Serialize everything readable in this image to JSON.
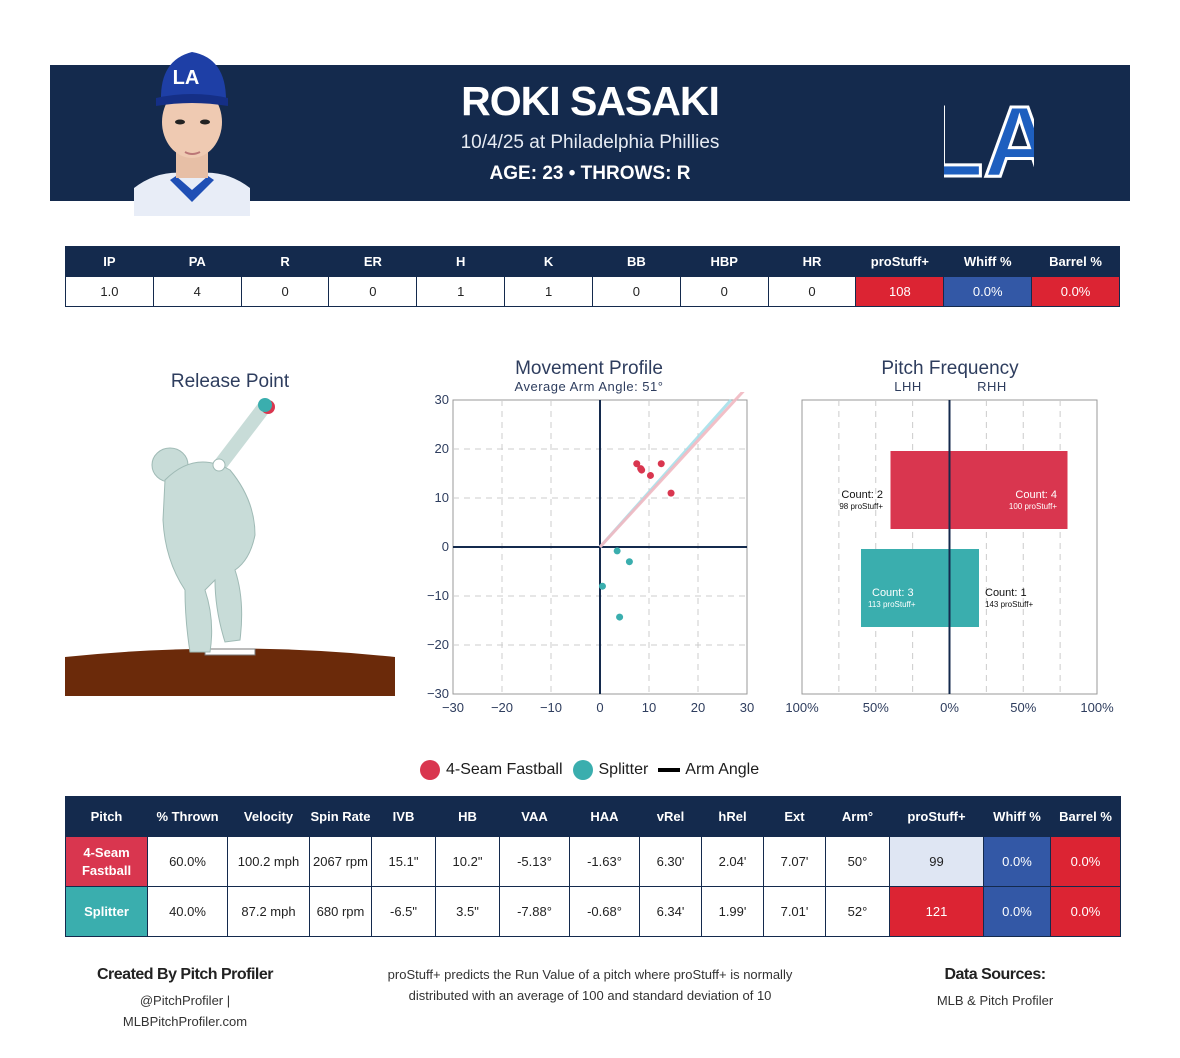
{
  "player": {
    "name": "ROKI SASAKI",
    "game": "10/4/25 at Philadelphia Phillies",
    "meta": "AGE: 23 • THROWS: R",
    "team_logo_text": "LA",
    "cap_logo_text": "LA"
  },
  "colors": {
    "navy": "#142a4d",
    "fastball": "#d9364f",
    "splitter": "#3aaeae",
    "red": "#dc2433",
    "blue": "#3358a6"
  },
  "stats": {
    "headers": [
      "IP",
      "PA",
      "R",
      "ER",
      "H",
      "K",
      "BB",
      "HBP",
      "HR",
      "proStuff+",
      "Whiff %",
      "Barrel %"
    ],
    "values": [
      "1.0",
      "4",
      "0",
      "0",
      "1",
      "1",
      "0",
      "0",
      "0",
      "108",
      "0.0%",
      "0.0%"
    ]
  },
  "release": {
    "title": "Release Point"
  },
  "movement": {
    "title": "Movement Profile",
    "subtitle": "Average Arm Angle: 51°",
    "xticks": [
      "−30",
      "−20",
      "−10",
      "0",
      "10",
      "20",
      "30"
    ],
    "yticks": [
      "30",
      "20",
      "10",
      "0",
      "−10",
      "−20",
      "−30"
    ]
  },
  "frequency": {
    "title": "Pitch Frequency",
    "lhh": "LHH",
    "rhh": "RHH",
    "xticks": [
      "100%",
      "50%",
      "0%",
      "50%",
      "100%"
    ],
    "fb_l_count": "Count: 2",
    "fb_l_ps": "98 proStuff+",
    "fb_r_count": "Count: 4",
    "fb_r_ps": "100 proStuff+",
    "sp_l_count": "Count: 3",
    "sp_l_ps": "113 proStuff+",
    "sp_r_count": "Count: 1",
    "sp_r_ps": "143 proStuff+"
  },
  "chart_data": [
    {
      "type": "scatter",
      "title": "Movement Profile",
      "subtitle": "Average Arm Angle: 51°",
      "xlim": [
        -30,
        30
      ],
      "ylim": [
        -30,
        30
      ],
      "grid": true,
      "series": [
        {
          "name": "4-Seam Fastball",
          "points": [
            [
              7.5,
              17
            ],
            [
              8.3,
              16
            ],
            [
              8.5,
              15.7
            ],
            [
              10.3,
              14.6
            ],
            [
              12.5,
              17
            ],
            [
              14.5,
              11
            ]
          ]
        },
        {
          "name": "Splitter",
          "points": [
            [
              3.5,
              -0.8
            ],
            [
              6,
              -3
            ],
            [
              0.5,
              -8
            ],
            [
              4,
              -14.3
            ]
          ]
        }
      ],
      "arm_angle_deg": 51
    },
    {
      "type": "bar",
      "title": "Pitch Frequency",
      "categories": [
        "4-Seam Fastball",
        "Splitter"
      ],
      "xlim": [
        -100,
        100
      ],
      "series": [
        {
          "name": "LHH",
          "values": [
            40,
            60
          ],
          "counts": [
            2,
            3
          ],
          "prostuff": [
            98,
            113
          ]
        },
        {
          "name": "RHH",
          "values": [
            80,
            20
          ],
          "counts": [
            4,
            1
          ],
          "prostuff": [
            100,
            143
          ]
        }
      ]
    }
  ],
  "legend": {
    "fastball": "4-Seam Fastball",
    "splitter": "Splitter",
    "arm": "Arm Angle"
  },
  "pitch_table": {
    "headers": [
      "Pitch",
      "% Thrown",
      "Velocity",
      "Spin Rate",
      "IVB",
      "HB",
      "VAA",
      "HAA",
      "vRel",
      "hRel",
      "Ext",
      "Arm°",
      "proStuff+",
      "Whiff %",
      "Barrel %"
    ],
    "rows": [
      [
        "4-Seam Fastball",
        "60.0%",
        "100.2 mph",
        "2067 rpm",
        "15.1\"",
        "10.2\"",
        "-5.13°",
        "-1.63°",
        "6.30'",
        "2.04'",
        "7.07'",
        "50°",
        "99",
        "0.0%",
        "0.0%"
      ],
      [
        "Splitter",
        "40.0%",
        "87.2 mph",
        "680 rpm",
        "-6.5\"",
        "3.5\"",
        "-7.88°",
        "-0.68°",
        "6.34'",
        "1.99'",
        "7.01'",
        "52°",
        "121",
        "0.0%",
        "0.0%"
      ]
    ]
  },
  "footer": {
    "created": "Created By Pitch Profiler",
    "handle": "@PitchProfiler |",
    "site": "MLBPitchProfiler.com",
    "desc1": "proStuff+ predicts the Run Value of a pitch where proStuff+ is normally",
    "desc2": "distributed with an average of 100 and standard deviation of 10",
    "src_title": "Data Sources:",
    "src": "MLB & Pitch Profiler"
  }
}
